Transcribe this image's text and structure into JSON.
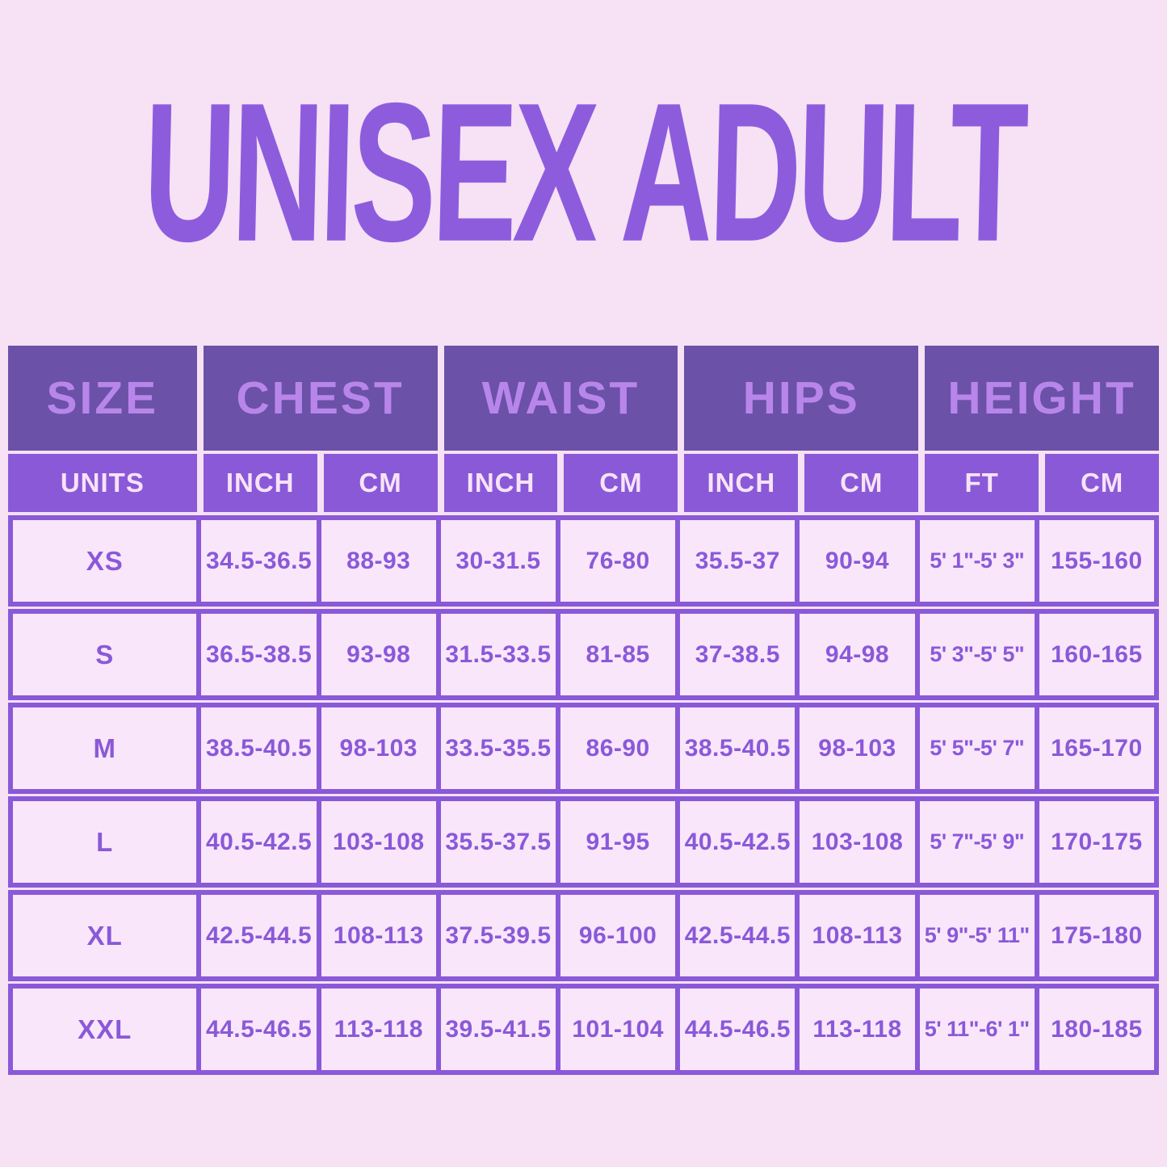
{
  "page": {
    "background_color": "#f6e1f5"
  },
  "title": {
    "text": "UNISEX ADULT",
    "color": "#8d5cdd"
  },
  "table": {
    "colors": {
      "group_header_bg": "#6b51a7",
      "group_header_text": "#b886ea",
      "sub_header_bg": "#8a59d8",
      "sub_header_text": "#f7e3f7",
      "cell_bg": "#f9e6fa",
      "cell_text": "#8a59d8",
      "border": "#8a59d8"
    },
    "group_headers": [
      "SIZE",
      "CHEST",
      "WAIST",
      "HIPS",
      "HEIGHT"
    ],
    "sub_headers": [
      "UNITS",
      "INCH",
      "CM",
      "INCH",
      "CM",
      "INCH",
      "CM",
      "FT",
      "CM"
    ],
    "rows": [
      {
        "size": "XS",
        "cells": [
          "34.5-36.5",
          "88-93",
          "30-31.5",
          "76-80",
          "35.5-37",
          "90-94",
          "5' 1\"-5' 3\"",
          "155-160"
        ]
      },
      {
        "size": "S",
        "cells": [
          "36.5-38.5",
          "93-98",
          "31.5-33.5",
          "81-85",
          "37-38.5",
          "94-98",
          "5' 3\"-5' 5\"",
          "160-165"
        ]
      },
      {
        "size": "M",
        "cells": [
          "38.5-40.5",
          "98-103",
          "33.5-35.5",
          "86-90",
          "38.5-40.5",
          "98-103",
          "5' 5\"-5' 7\"",
          "165-170"
        ]
      },
      {
        "size": "L",
        "cells": [
          "40.5-42.5",
          "103-108",
          "35.5-37.5",
          "91-95",
          "40.5-42.5",
          "103-108",
          "5' 7\"-5' 9\"",
          "170-175"
        ]
      },
      {
        "size": "XL",
        "cells": [
          "42.5-44.5",
          "108-113",
          "37.5-39.5",
          "96-100",
          "42.5-44.5",
          "108-113",
          "5' 9\"-5' 11\"",
          "175-180"
        ]
      },
      {
        "size": "XXL",
        "cells": [
          "44.5-46.5",
          "113-118",
          "39.5-41.5",
          "101-104",
          "44.5-46.5",
          "113-118",
          "5' 11\"-6' 1\"",
          "180-185"
        ]
      }
    ]
  },
  "chart_data": {
    "type": "table",
    "title": "UNISEX ADULT",
    "columns": [
      "SIZE",
      "CHEST INCH",
      "CHEST CM",
      "WAIST INCH",
      "WAIST CM",
      "HIPS INCH",
      "HIPS CM",
      "HEIGHT FT",
      "HEIGHT CM"
    ],
    "rows": [
      [
        "XS",
        "34.5-36.5",
        "88-93",
        "30-31.5",
        "76-80",
        "35.5-37",
        "90-94",
        "5' 1\"-5' 3\"",
        "155-160"
      ],
      [
        "S",
        "36.5-38.5",
        "93-98",
        "31.5-33.5",
        "81-85",
        "37-38.5",
        "94-98",
        "5' 3\"-5' 5\"",
        "160-165"
      ],
      [
        "M",
        "38.5-40.5",
        "98-103",
        "33.5-35.5",
        "86-90",
        "38.5-40.5",
        "98-103",
        "5' 5\"-5' 7\"",
        "165-170"
      ],
      [
        "L",
        "40.5-42.5",
        "103-108",
        "35.5-37.5",
        "91-95",
        "40.5-42.5",
        "103-108",
        "5' 7\"-5' 9\"",
        "170-175"
      ],
      [
        "XL",
        "42.5-44.5",
        "108-113",
        "37.5-39.5",
        "96-100",
        "42.5-44.5",
        "108-113",
        "5' 9\"-5' 11\"",
        "175-180"
      ],
      [
        "XXL",
        "44.5-46.5",
        "113-118",
        "39.5-41.5",
        "101-104",
        "44.5-46.5",
        "113-118",
        "5' 11\"-6' 1\"",
        "180-185"
      ]
    ]
  }
}
